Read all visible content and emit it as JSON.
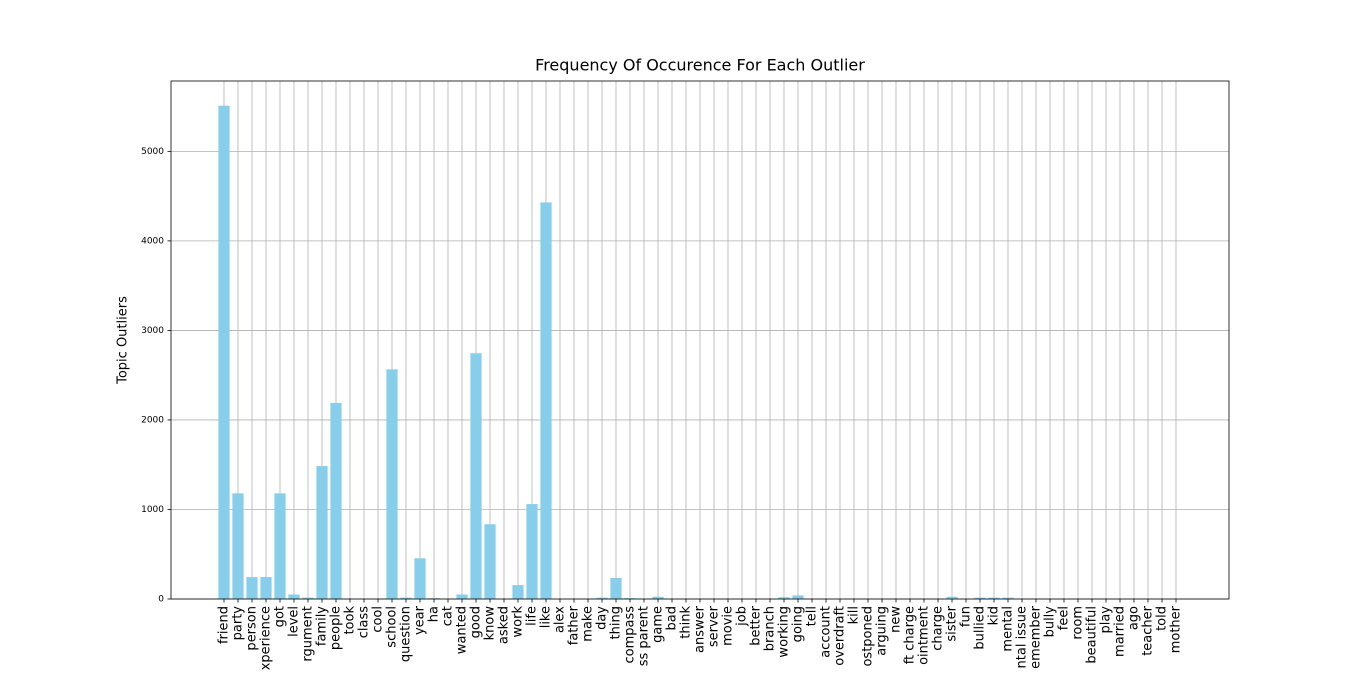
{
  "chart_data": {
    "type": "bar",
    "title": "Frequency Of Occurence For Each Outlier",
    "y_label": "Topic Outliers",
    "categories": [
      "friend",
      "party",
      "person",
      "xperience",
      "got",
      "level",
      "rgument",
      "family",
      "people",
      "took",
      "class",
      "cool",
      "school",
      "question",
      "year",
      "ha",
      "cat",
      "wanted",
      "good",
      "know",
      "asked",
      "work",
      "life",
      "like",
      "alex",
      "father",
      "make",
      "day",
      "thing",
      "compass",
      "ss parent",
      "game",
      "bad",
      "think",
      "answer",
      "server",
      "movie",
      "job",
      "better",
      "branch",
      "working",
      "going",
      "tell",
      "account",
      "overdraft",
      "kill",
      "ostponed",
      "arguing",
      "new",
      "ft charge",
      "ointment",
      "charge",
      "sister",
      "fun",
      "bullied",
      "kid",
      "mental",
      "ntal issue",
      "emember",
      "bully",
      "feel",
      "room",
      "beautiful",
      "play",
      "married",
      "ago",
      "teacher",
      "told",
      "mother"
    ],
    "values": [
      5510,
      1180,
      245,
      245,
      1180,
      50,
      15,
      1485,
      2190,
      0,
      0,
      0,
      2565,
      15,
      455,
      10,
      5,
      50,
      2745,
      835,
      0,
      155,
      1060,
      4430,
      0,
      0,
      5,
      15,
      235,
      10,
      0,
      25,
      0,
      5,
      0,
      0,
      0,
      0,
      0,
      0,
      20,
      40,
      0,
      5,
      5,
      0,
      0,
      0,
      0,
      0,
      0,
      0,
      25,
      5,
      15,
      15,
      15,
      5,
      5,
      5,
      0,
      0,
      0,
      0,
      0,
      0,
      5,
      0,
      0
    ],
    "color": "#87ceeb",
    "ylim": [
      0,
      5786
    ],
    "yticks": [
      0,
      1000,
      2000,
      3000,
      4000,
      5000
    ],
    "grid": true
  }
}
